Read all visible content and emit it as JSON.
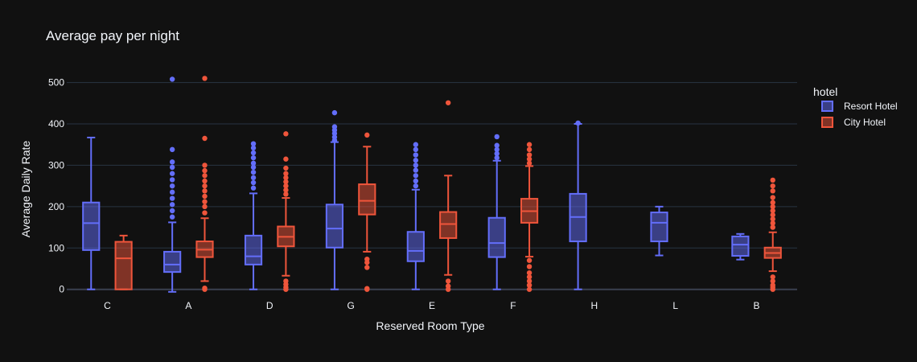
{
  "chart_data": {
    "type": "box",
    "title": "Average pay per night",
    "xlabel": "Reserved Room Type",
    "ylabel": "Average Daily Rate",
    "categories": [
      "C",
      "A",
      "D",
      "G",
      "E",
      "F",
      "H",
      "L",
      "B"
    ],
    "ylim": [
      -20,
      540
    ],
    "yticks": [
      0,
      100,
      200,
      300,
      400,
      500
    ],
    "grid": true,
    "legend": {
      "title": "hotel",
      "placement": "top-right"
    },
    "series": [
      {
        "name": "Resort Hotel",
        "color": "#636efa",
        "boxes": [
          {
            "category": "C",
            "min": 0,
            "q1": 95,
            "median": 160,
            "q3": 210,
            "max": 367,
            "outliers": []
          },
          {
            "category": "A",
            "min": -6,
            "q1": 42,
            "median": 60,
            "q3": 91,
            "max": 162,
            "outliers": [
              175,
              190,
              205,
              220,
              235,
              250,
              265,
              280,
              295,
              308,
              338,
              508
            ]
          },
          {
            "category": "D",
            "min": 0,
            "q1": 60,
            "median": 80,
            "q3": 130,
            "max": 232,
            "outliers": [
              245,
              258,
              270,
              283,
              295,
              305,
              318,
              330,
              342,
              352
            ]
          },
          {
            "category": "G",
            "min": 0,
            "q1": 101,
            "median": 147,
            "q3": 205,
            "max": 356,
            "outliers": [
              360,
              368,
              377,
              385,
              393,
              427
            ]
          },
          {
            "category": "E",
            "min": 0,
            "q1": 68,
            "median": 93,
            "q3": 139,
            "max": 241,
            "outliers": [
              250,
              262,
              275,
              288,
              300,
              312,
              325,
              338,
              350
            ]
          },
          {
            "category": "F",
            "min": 0,
            "q1": 78,
            "median": 112,
            "q3": 173,
            "max": 311,
            "outliers": [
              318,
              328,
              338,
              348,
              369
            ]
          },
          {
            "category": "H",
            "min": 0,
            "q1": 116,
            "median": 175,
            "q3": 231,
            "max": 400,
            "outliers": [
              402
            ]
          },
          {
            "category": "L",
            "min": 82,
            "q1": 116,
            "median": 161,
            "q3": 186,
            "max": 200,
            "outliers": []
          },
          {
            "category": "B",
            "min": 72,
            "q1": 81,
            "median": 108,
            "q3": 128,
            "max": 134,
            "outliers": []
          }
        ]
      },
      {
        "name": "City Hotel",
        "color": "#ef553b",
        "boxes": [
          {
            "category": "C",
            "min": 0,
            "q1": 0,
            "median": 75,
            "q3": 115,
            "max": 130,
            "outliers": []
          },
          {
            "category": "A",
            "min": 20,
            "q1": 78,
            "median": 96,
            "q3": 116,
            "max": 172,
            "outliers": [
              0,
              3,
              185,
              200,
              212,
              225,
              238,
              250,
              262,
              275,
              287,
              300,
              365,
              510
            ]
          },
          {
            "category": "D",
            "min": 33,
            "q1": 104,
            "median": 127,
            "q3": 152,
            "max": 221,
            "outliers": [
              0,
              5,
              12,
              20,
              230,
              240,
              250,
              260,
              270,
              280,
              293,
              315,
              376
            ]
          },
          {
            "category": "G",
            "min": 91,
            "q1": 181,
            "median": 214,
            "q3": 254,
            "max": 345,
            "outliers": [
              0,
              2,
              53,
              65,
              73,
              373
            ]
          },
          {
            "category": "E",
            "min": 35,
            "q1": 124,
            "median": 158,
            "q3": 187,
            "max": 275,
            "outliers": [
              0,
              8,
              20,
              451
            ]
          },
          {
            "category": "F",
            "min": 79,
            "q1": 161,
            "median": 189,
            "q3": 219,
            "max": 298,
            "outliers": [
              0,
              10,
              20,
              30,
              40,
              55,
              70,
              305,
              315,
              325,
              338,
              350
            ]
          },
          {
            "category": "B",
            "min": 44,
            "q1": 76,
            "median": 88,
            "q3": 101,
            "max": 138,
            "outliers": [
              0,
              5,
              10,
              20,
              30,
              150,
              160,
              170,
              180,
              190,
              200,
              210,
              222,
              238,
              250,
              264
            ]
          }
        ]
      }
    ]
  }
}
